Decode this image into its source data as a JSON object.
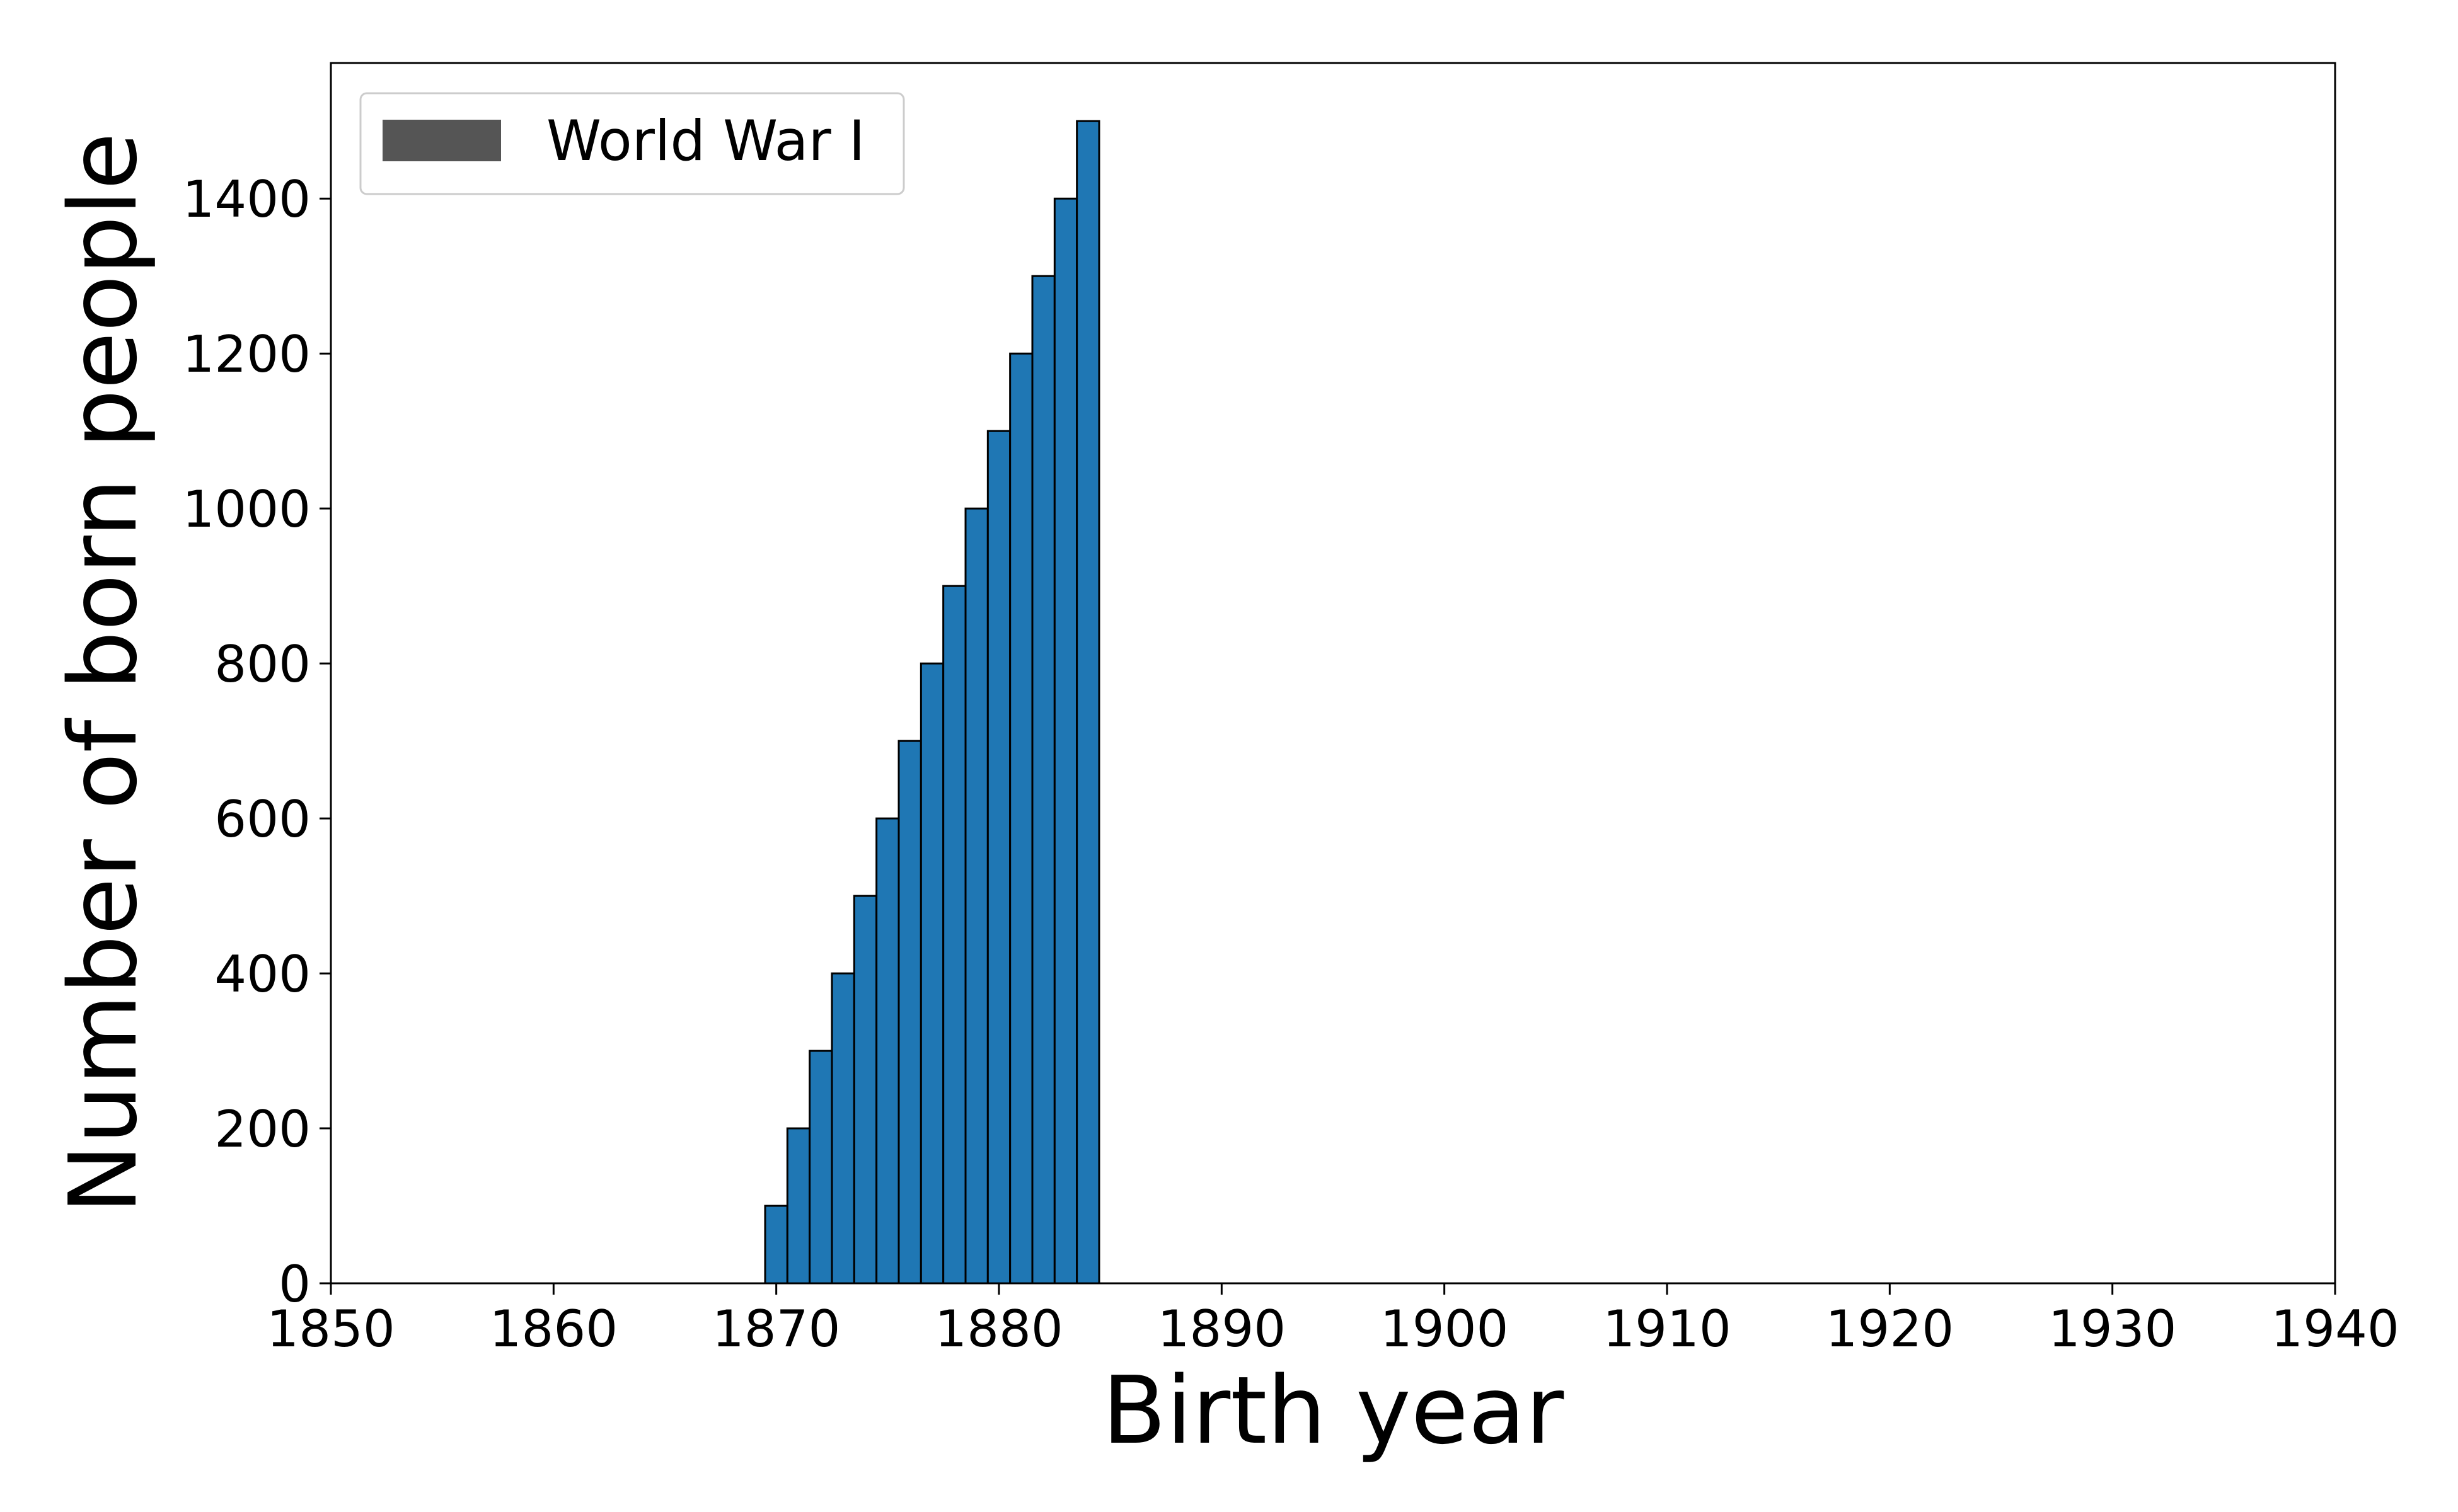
{
  "chart_data": {
    "type": "bar",
    "title": "",
    "xlabel": "Birth year",
    "ylabel": "Number of born people",
    "xlim": [
      1850,
      1940
    ],
    "ylim": [
      0,
      1575
    ],
    "xticks": [
      1850,
      1860,
      1870,
      1880,
      1890,
      1900,
      1910,
      1920,
      1930,
      1940
    ],
    "yticks": [
      0,
      200,
      400,
      600,
      800,
      1000,
      1200,
      1400
    ],
    "grid": false,
    "x": [
      1870,
      1871,
      1872,
      1873,
      1874,
      1875,
      1876,
      1877,
      1878,
      1879,
      1880,
      1881,
      1882,
      1883,
      1884
    ],
    "values": [
      100,
      200,
      300,
      400,
      500,
      600,
      700,
      800,
      900,
      1000,
      1100,
      1200,
      1300,
      1400,
      1500
    ],
    "bar_color": "#1f77b4",
    "edge_color": "#000000",
    "legend": {
      "placement": "top-left",
      "entries": [
        {
          "label": "World War I",
          "color": "#555555"
        }
      ]
    }
  }
}
